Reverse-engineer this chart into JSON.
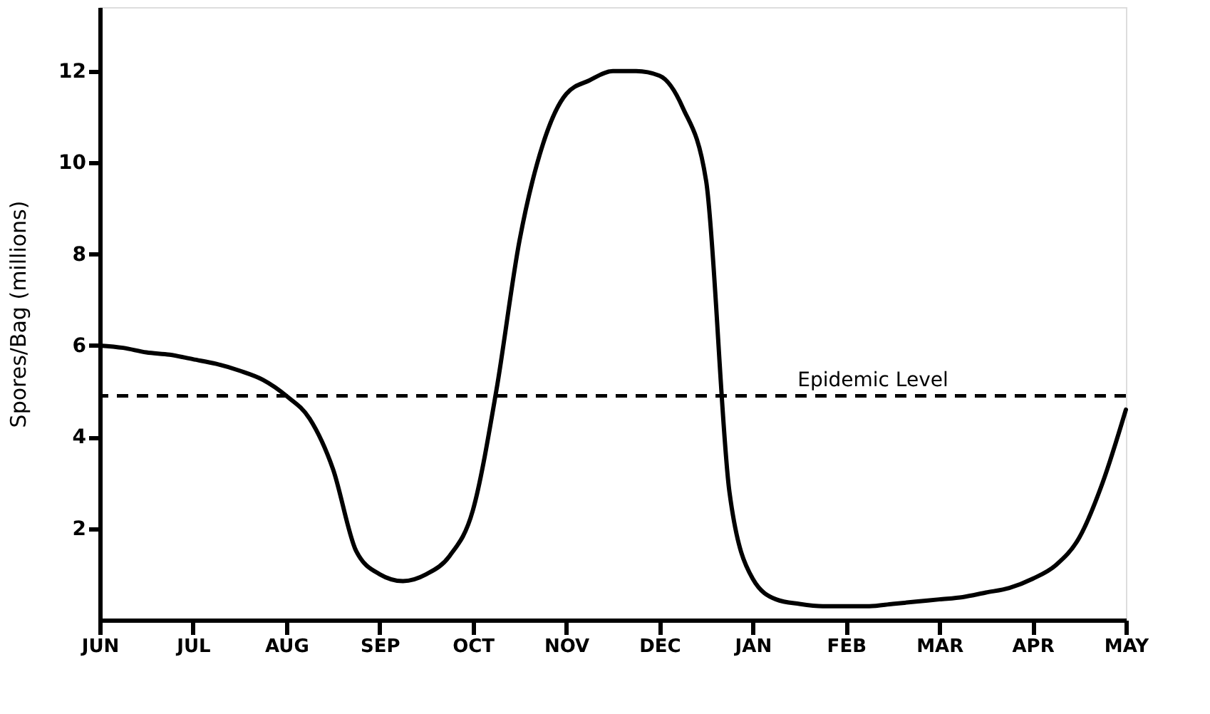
{
  "chart_data": {
    "type": "line",
    "ylabel": "Spores/Bag (millions)",
    "categories": [
      "JUN",
      null,
      null,
      null,
      "JUL",
      null,
      null,
      null,
      "AUG",
      null,
      null,
      null,
      "SEP",
      null,
      null,
      null,
      "OCT",
      null,
      null,
      null,
      "NOV",
      null,
      null,
      null,
      "DEC",
      null,
      null,
      null,
      "JAN",
      null,
      null,
      null,
      "FEB",
      null,
      null,
      null,
      "MAR",
      null,
      null,
      null,
      "APR",
      null,
      null,
      null,
      "MAY"
    ],
    "series": [
      {
        "color": "#000000",
        "values": [
          6.0,
          5.95,
          5.85,
          5.8,
          5.7,
          5.6,
          5.45,
          5.25,
          4.9,
          4.4,
          3.3,
          1.5,
          1.0,
          0.85,
          1.0,
          1.4,
          2.4,
          5.0,
          8.3,
          10.4,
          11.5,
          11.8,
          12.0,
          12.0,
          11.9,
          11.2,
          9.6,
          2.8,
          0.9,
          0.45,
          0.35,
          0.3,
          0.3,
          0.3,
          0.35,
          0.4,
          0.45,
          0.5,
          0.6,
          0.7,
          0.9,
          1.2,
          1.8,
          3.0,
          4.6
        ]
      }
    ],
    "ylim": [
      0,
      13.4
    ],
    "yticks": [
      2,
      4,
      6,
      8,
      10,
      12
    ],
    "ref_lines": [
      {
        "axis": "y",
        "value": 4.9,
        "label": "Epidemic Level",
        "color": "#000000",
        "line_style": "dashed"
      }
    ],
    "grid": false,
    "marker": "none",
    "line_style": "solid"
  }
}
